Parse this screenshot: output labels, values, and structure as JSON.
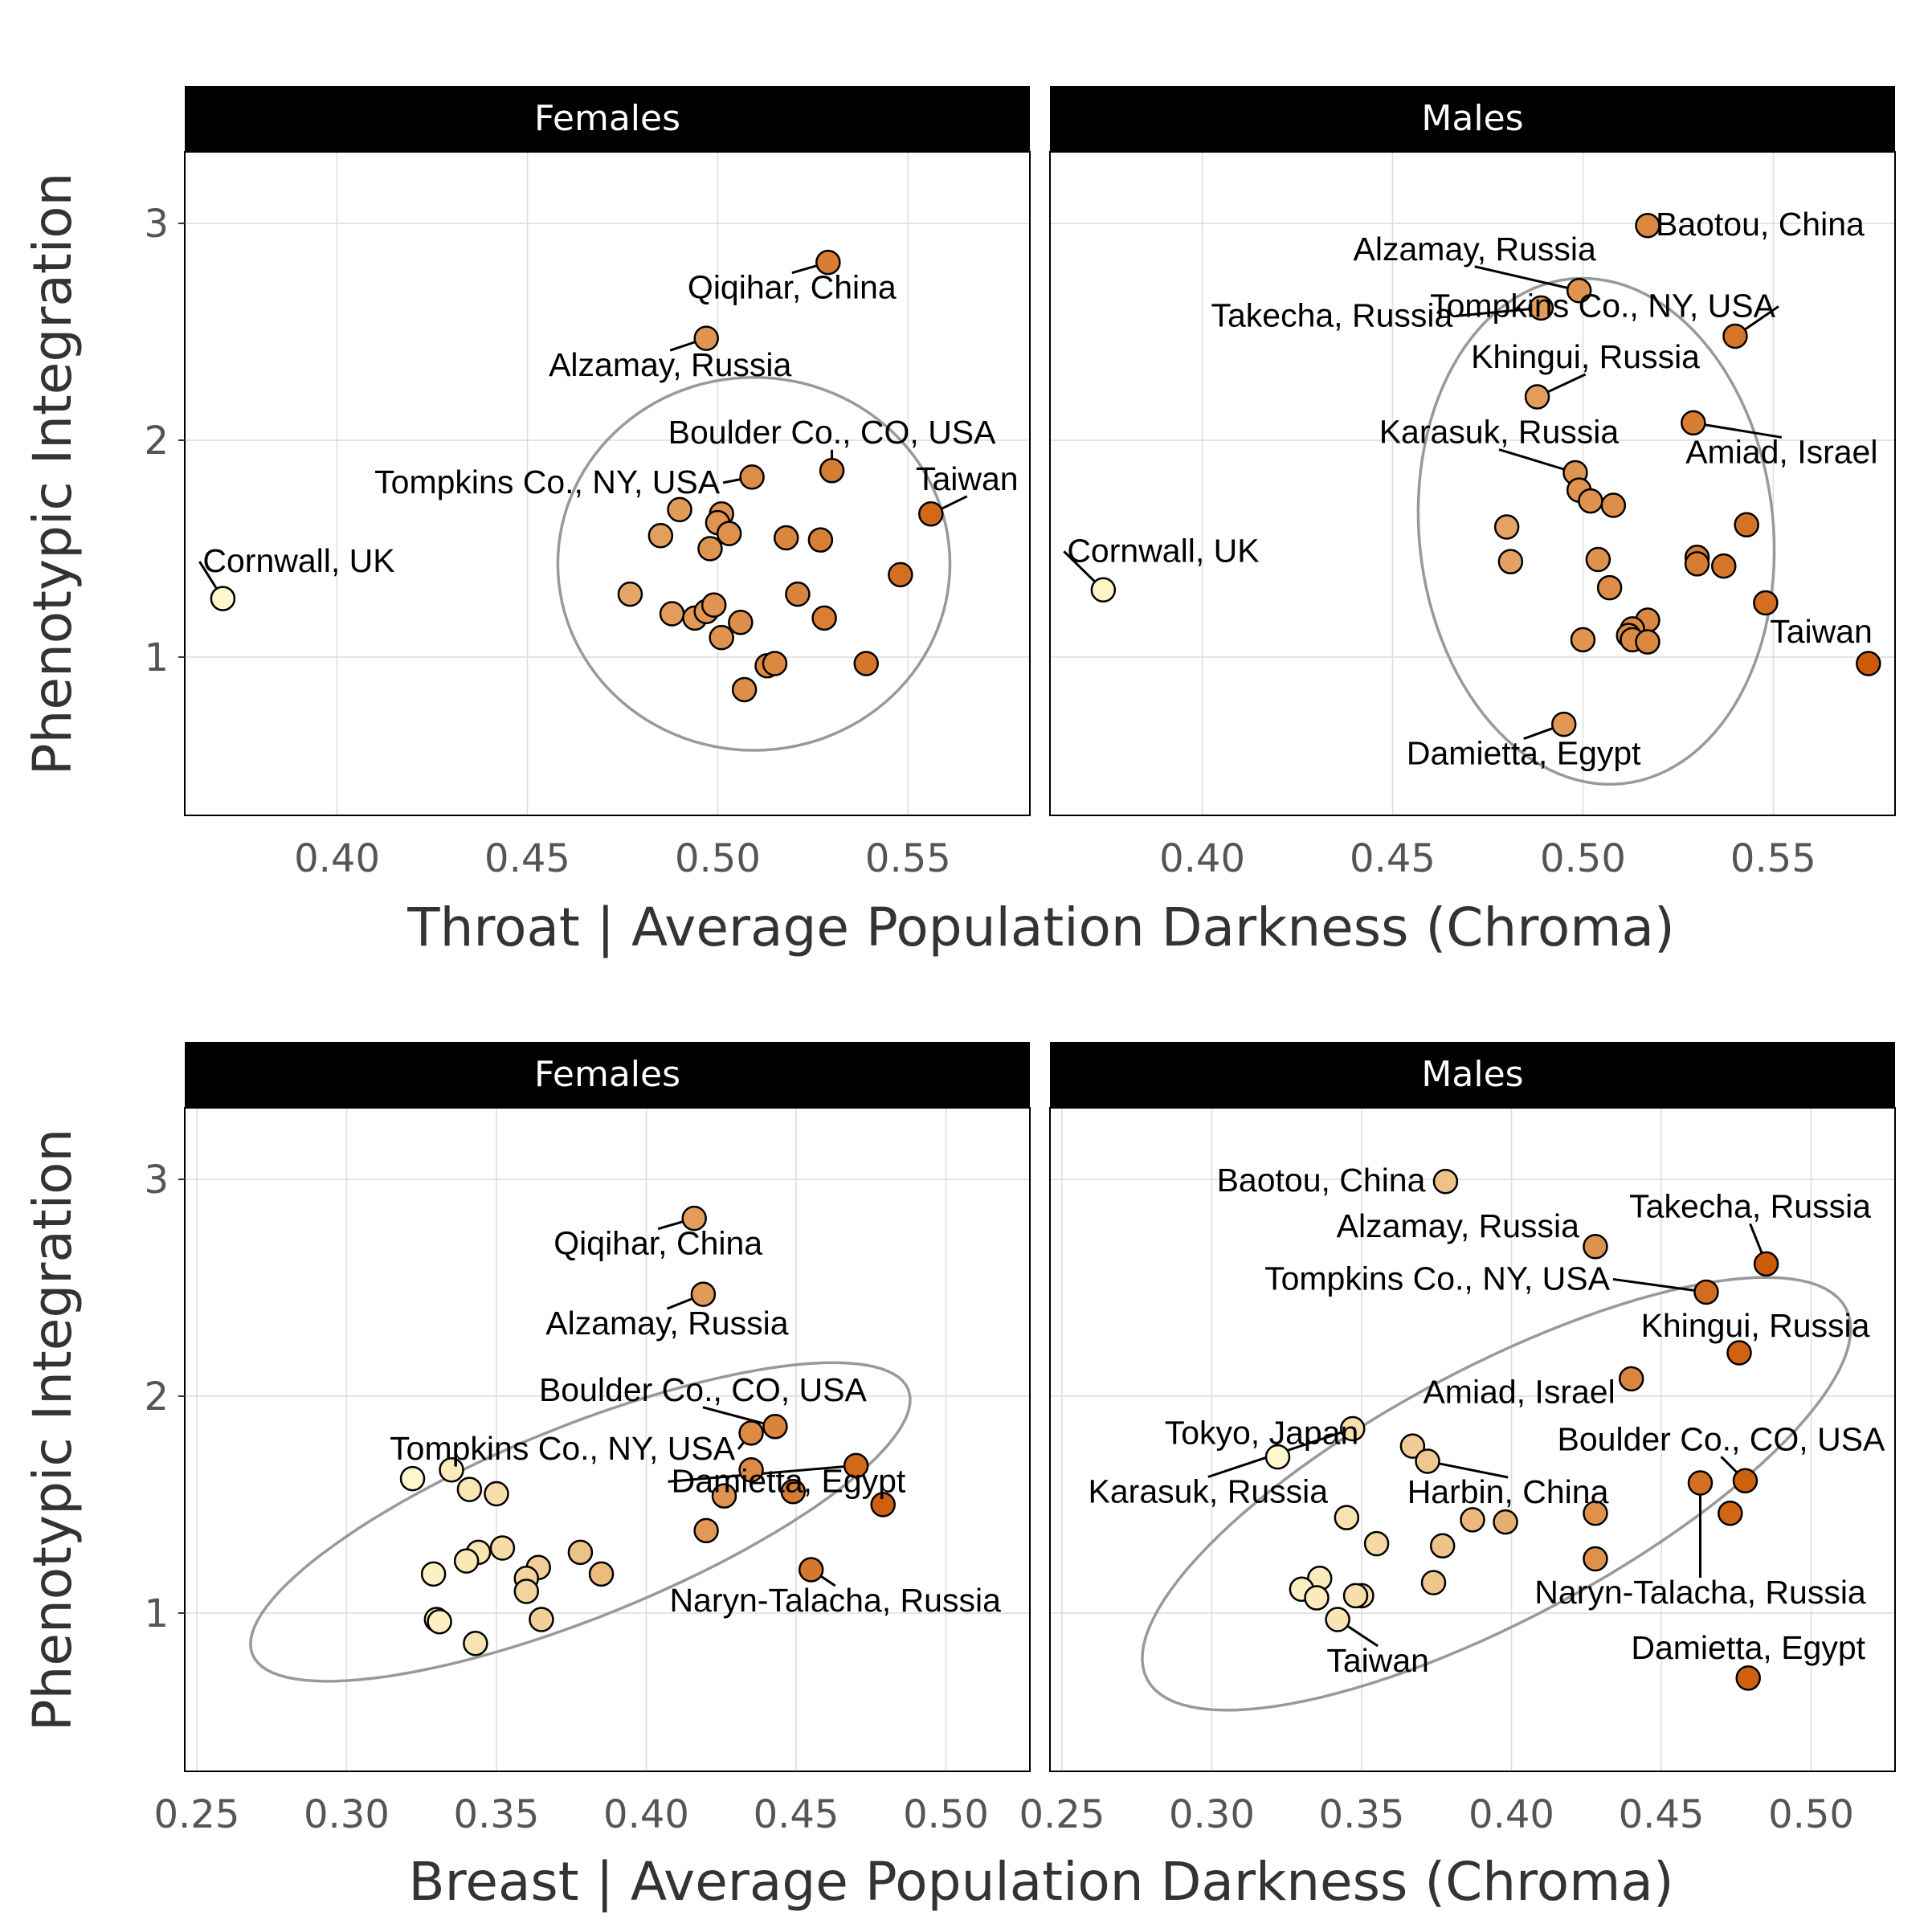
{
  "y_axis_title": "Phenotypic Integration",
  "colors": {
    "strip_bg": "#000000",
    "strip_text": "#ffffff",
    "grid": "#dcdcdc",
    "ellipse": "#999999",
    "point_light": "#fff8cc",
    "point_dark": "#cc5a08"
  },
  "chart_data": [
    {
      "type": "scatter",
      "row_title": "Throat | Average Population Darkness (Chroma)",
      "ylabel": "Phenotypic Integration",
      "xlim": [
        0.36,
        0.582
      ],
      "ylim": [
        0.27,
        3.33
      ],
      "xticks": [
        "0.40",
        "0.45",
        "0.50",
        "0.55"
      ],
      "xtick_values": [
        0.4,
        0.45,
        0.5,
        0.55
      ],
      "yticks": [
        "1",
        "2",
        "3"
      ],
      "ytick_values": [
        1,
        2,
        3
      ],
      "grid": true,
      "panels": [
        {
          "facet": "Females",
          "ellipse": {
            "cx": 0.5095,
            "cy": 1.43,
            "rx": 0.0515,
            "ry": 0.86,
            "angle_deg": 0
          },
          "points": [
            {
              "x": 0.37,
              "y": 1.27
            },
            {
              "x": 0.529,
              "y": 2.82
            },
            {
              "x": 0.497,
              "y": 2.47
            },
            {
              "x": 0.509,
              "y": 1.83
            },
            {
              "x": 0.53,
              "y": 1.86
            },
            {
              "x": 0.556,
              "y": 1.66
            },
            {
              "x": 0.49,
              "y": 1.68
            },
            {
              "x": 0.501,
              "y": 1.66
            },
            {
              "x": 0.5,
              "y": 1.62
            },
            {
              "x": 0.503,
              "y": 1.57
            },
            {
              "x": 0.485,
              "y": 1.56
            },
            {
              "x": 0.498,
              "y": 1.5
            },
            {
              "x": 0.518,
              "y": 1.55
            },
            {
              "x": 0.527,
              "y": 1.54
            },
            {
              "x": 0.548,
              "y": 1.38
            },
            {
              "x": 0.477,
              "y": 1.29
            },
            {
              "x": 0.521,
              "y": 1.29
            },
            {
              "x": 0.488,
              "y": 1.2
            },
            {
              "x": 0.494,
              "y": 1.18
            },
            {
              "x": 0.497,
              "y": 1.21
            },
            {
              "x": 0.499,
              "y": 1.24
            },
            {
              "x": 0.528,
              "y": 1.18
            },
            {
              "x": 0.506,
              "y": 1.16
            },
            {
              "x": 0.501,
              "y": 1.09
            },
            {
              "x": 0.513,
              "y": 0.96
            },
            {
              "x": 0.515,
              "y": 0.97
            },
            {
              "x": 0.539,
              "y": 0.97
            },
            {
              "x": 0.507,
              "y": 0.85
            }
          ],
          "labels": [
            {
              "text": "Cornwall, UK",
              "x": 0.37,
              "y": 1.27
            },
            {
              "text": "Qiqihar, China",
              "x": 0.529,
              "y": 2.82
            },
            {
              "text": "Alzamay, Russia",
              "x": 0.497,
              "y": 2.47
            },
            {
              "text": "Boulder Co., CO, USA",
              "x": 0.53,
              "y": 1.86
            },
            {
              "text": "Tompkins Co., NY, USA",
              "x": 0.509,
              "y": 1.83
            },
            {
              "text": "Taiwan",
              "x": 0.556,
              "y": 1.66
            }
          ]
        },
        {
          "facet": "Males",
          "ellipse": {
            "cx": 0.5035,
            "cy": 1.58,
            "rx": 0.0465,
            "ry": 1.17,
            "angle_deg": -6
          },
          "points": [
            {
              "x": 0.374,
              "y": 1.31
            },
            {
              "x": 0.517,
              "y": 2.99
            },
            {
              "x": 0.499,
              "y": 2.69
            },
            {
              "x": 0.489,
              "y": 2.61
            },
            {
              "x": 0.54,
              "y": 2.48
            },
            {
              "x": 0.488,
              "y": 2.2
            },
            {
              "x": 0.529,
              "y": 2.08
            },
            {
              "x": 0.498,
              "y": 1.85
            },
            {
              "x": 0.499,
              "y": 1.77
            },
            {
              "x": 0.502,
              "y": 1.72
            },
            {
              "x": 0.508,
              "y": 1.7
            },
            {
              "x": 0.48,
              "y": 1.6
            },
            {
              "x": 0.543,
              "y": 1.61
            },
            {
              "x": 0.481,
              "y": 1.44
            },
            {
              "x": 0.504,
              "y": 1.45
            },
            {
              "x": 0.53,
              "y": 1.46
            },
            {
              "x": 0.53,
              "y": 1.43
            },
            {
              "x": 0.537,
              "y": 1.42
            },
            {
              "x": 0.507,
              "y": 1.32
            },
            {
              "x": 0.548,
              "y": 1.25
            },
            {
              "x": 0.517,
              "y": 1.17
            },
            {
              "x": 0.513,
              "y": 1.13
            },
            {
              "x": 0.512,
              "y": 1.1
            },
            {
              "x": 0.513,
              "y": 1.08
            },
            {
              "x": 0.5,
              "y": 1.08
            },
            {
              "x": 0.517,
              "y": 1.07
            },
            {
              "x": 0.575,
              "y": 0.97
            },
            {
              "x": 0.495,
              "y": 0.69
            }
          ],
          "labels": [
            {
              "text": "Cornwall, UK",
              "x": 0.374,
              "y": 1.31
            },
            {
              "text": "Baotou, China",
              "x": 0.517,
              "y": 2.99
            },
            {
              "text": "Alzamay, Russia",
              "x": 0.499,
              "y": 2.69
            },
            {
              "text": "Takecha, Russia",
              "x": 0.489,
              "y": 2.61
            },
            {
              "text": "Tompkins Co., NY, USA",
              "x": 0.54,
              "y": 2.48
            },
            {
              "text": "Khingui, Russia",
              "x": 0.488,
              "y": 2.2
            },
            {
              "text": "Amiad, Israel",
              "x": 0.529,
              "y": 2.08
            },
            {
              "text": "Karasuk, Russia",
              "x": 0.498,
              "y": 1.85
            },
            {
              "text": "Taiwan",
              "x": 0.575,
              "y": 0.97
            },
            {
              "text": "Damietta, Egypt",
              "x": 0.495,
              "y": 0.69
            }
          ]
        }
      ]
    },
    {
      "type": "scatter",
      "row_title": "Breast | Average Population Darkness (Chroma)",
      "ylabel": "Phenotypic Integration",
      "xlim": [
        0.246,
        0.528
      ],
      "ylim": [
        0.27,
        3.33
      ],
      "xticks": [
        "0.25",
        "0.30",
        "0.35",
        "0.40",
        "0.45",
        "0.50"
      ],
      "xtick_values": [
        0.25,
        0.3,
        0.35,
        0.4,
        0.45,
        0.5
      ],
      "yticks": [
        "1",
        "2",
        "3"
      ],
      "ytick_values": [
        1,
        2,
        3
      ],
      "grid": true,
      "panels": [
        {
          "facet": "Females",
          "ellipse": {
            "cx": 0.378,
            "cy": 1.42,
            "rx": 0.118,
            "ry": 0.44,
            "angle_deg": -22
          },
          "points": [
            {
              "x": 0.416,
              "y": 2.82
            },
            {
              "x": 0.419,
              "y": 2.47
            },
            {
              "x": 0.443,
              "y": 1.86
            },
            {
              "x": 0.435,
              "y": 1.83
            },
            {
              "x": 0.47,
              "y": 1.68
            },
            {
              "x": 0.479,
              "y": 1.5
            },
            {
              "x": 0.435,
              "y": 1.66
            },
            {
              "x": 0.449,
              "y": 1.56
            },
            {
              "x": 0.426,
              "y": 1.54
            },
            {
              "x": 0.42,
              "y": 1.38
            },
            {
              "x": 0.455,
              "y": 1.2
            },
            {
              "x": 0.322,
              "y": 1.62
            },
            {
              "x": 0.335,
              "y": 1.66
            },
            {
              "x": 0.341,
              "y": 1.57
            },
            {
              "x": 0.35,
              "y": 1.55
            },
            {
              "x": 0.352,
              "y": 1.3
            },
            {
              "x": 0.344,
              "y": 1.28
            },
            {
              "x": 0.34,
              "y": 1.24
            },
            {
              "x": 0.329,
              "y": 1.18
            },
            {
              "x": 0.364,
              "y": 1.21
            },
            {
              "x": 0.36,
              "y": 1.16
            },
            {
              "x": 0.36,
              "y": 1.1
            },
            {
              "x": 0.378,
              "y": 1.28
            },
            {
              "x": 0.385,
              "y": 1.18
            },
            {
              "x": 0.33,
              "y": 0.97
            },
            {
              "x": 0.365,
              "y": 0.97
            },
            {
              "x": 0.343,
              "y": 0.86
            },
            {
              "x": 0.331,
              "y": 0.96
            }
          ],
          "labels": [
            {
              "text": "Qiqihar, China",
              "x": 0.416,
              "y": 2.82
            },
            {
              "text": "Alzamay, Russia",
              "x": 0.419,
              "y": 2.47
            },
            {
              "text": "Boulder Co., CO, USA",
              "x": 0.443,
              "y": 1.86
            },
            {
              "text": "Tompkins Co., NY, USA",
              "x": 0.435,
              "y": 1.83
            },
            {
              "text": "Damietta, Egypt",
              "x": 0.47,
              "y": 1.68
            },
            {
              "text": "Naryn-Talacha, Russia",
              "x": 0.455,
              "y": 1.2
            }
          ]
        },
        {
          "facet": "Males",
          "ellipse": {
            "cx": 0.395,
            "cy": 1.55,
            "rx": 0.132,
            "ry": 0.58,
            "angle_deg": -28
          },
          "points": [
            {
              "x": 0.378,
              "y": 2.99
            },
            {
              "x": 0.428,
              "y": 2.69
            },
            {
              "x": 0.485,
              "y": 2.61
            },
            {
              "x": 0.465,
              "y": 2.48
            },
            {
              "x": 0.476,
              "y": 2.2
            },
            {
              "x": 0.44,
              "y": 2.08
            },
            {
              "x": 0.347,
              "y": 1.85
            },
            {
              "x": 0.322,
              "y": 1.72
            },
            {
              "x": 0.367,
              "y": 1.77
            },
            {
              "x": 0.372,
              "y": 1.7
            },
            {
              "x": 0.478,
              "y": 1.61
            },
            {
              "x": 0.463,
              "y": 1.6
            },
            {
              "x": 0.473,
              "y": 1.46
            },
            {
              "x": 0.428,
              "y": 1.46
            },
            {
              "x": 0.345,
              "y": 1.44
            },
            {
              "x": 0.387,
              "y": 1.43
            },
            {
              "x": 0.398,
              "y": 1.42
            },
            {
              "x": 0.355,
              "y": 1.32
            },
            {
              "x": 0.377,
              "y": 1.31
            },
            {
              "x": 0.428,
              "y": 1.25
            },
            {
              "x": 0.374,
              "y": 1.14
            },
            {
              "x": 0.336,
              "y": 1.16
            },
            {
              "x": 0.33,
              "y": 1.11
            },
            {
              "x": 0.35,
              "y": 1.08
            },
            {
              "x": 0.348,
              "y": 1.08
            },
            {
              "x": 0.335,
              "y": 1.07
            },
            {
              "x": 0.342,
              "y": 0.97
            },
            {
              "x": 0.479,
              "y": 0.7
            }
          ],
          "labels": [
            {
              "text": "Baotou, China",
              "x": 0.378,
              "y": 2.99
            },
            {
              "text": "Alzamay, Russia",
              "x": 0.428,
              "y": 2.69
            },
            {
              "text": "Takecha, Russia",
              "x": 0.485,
              "y": 2.61
            },
            {
              "text": "Tompkins Co., NY, USA",
              "x": 0.465,
              "y": 2.48
            },
            {
              "text": "Khingui, Russia",
              "x": 0.476,
              "y": 2.2
            },
            {
              "text": "Amiad, Israel",
              "x": 0.44,
              "y": 2.08
            },
            {
              "text": "Tokyo, Japan",
              "x": 0.322,
              "y": 1.72
            },
            {
              "text": "Karasuk, Russia",
              "x": 0.347,
              "y": 1.85
            },
            {
              "text": "Harbin, China",
              "x": 0.372,
              "y": 1.7
            },
            {
              "text": "Boulder Co., CO, USA",
              "x": 0.478,
              "y": 1.61
            },
            {
              "text": "Naryn-Talacha, Russia",
              "x": 0.463,
              "y": 1.6
            },
            {
              "text": "Taiwan",
              "x": 0.342,
              "y": 0.97
            },
            {
              "text": "Damietta, Egypt",
              "x": 0.479,
              "y": 0.7
            }
          ]
        }
      ]
    }
  ]
}
